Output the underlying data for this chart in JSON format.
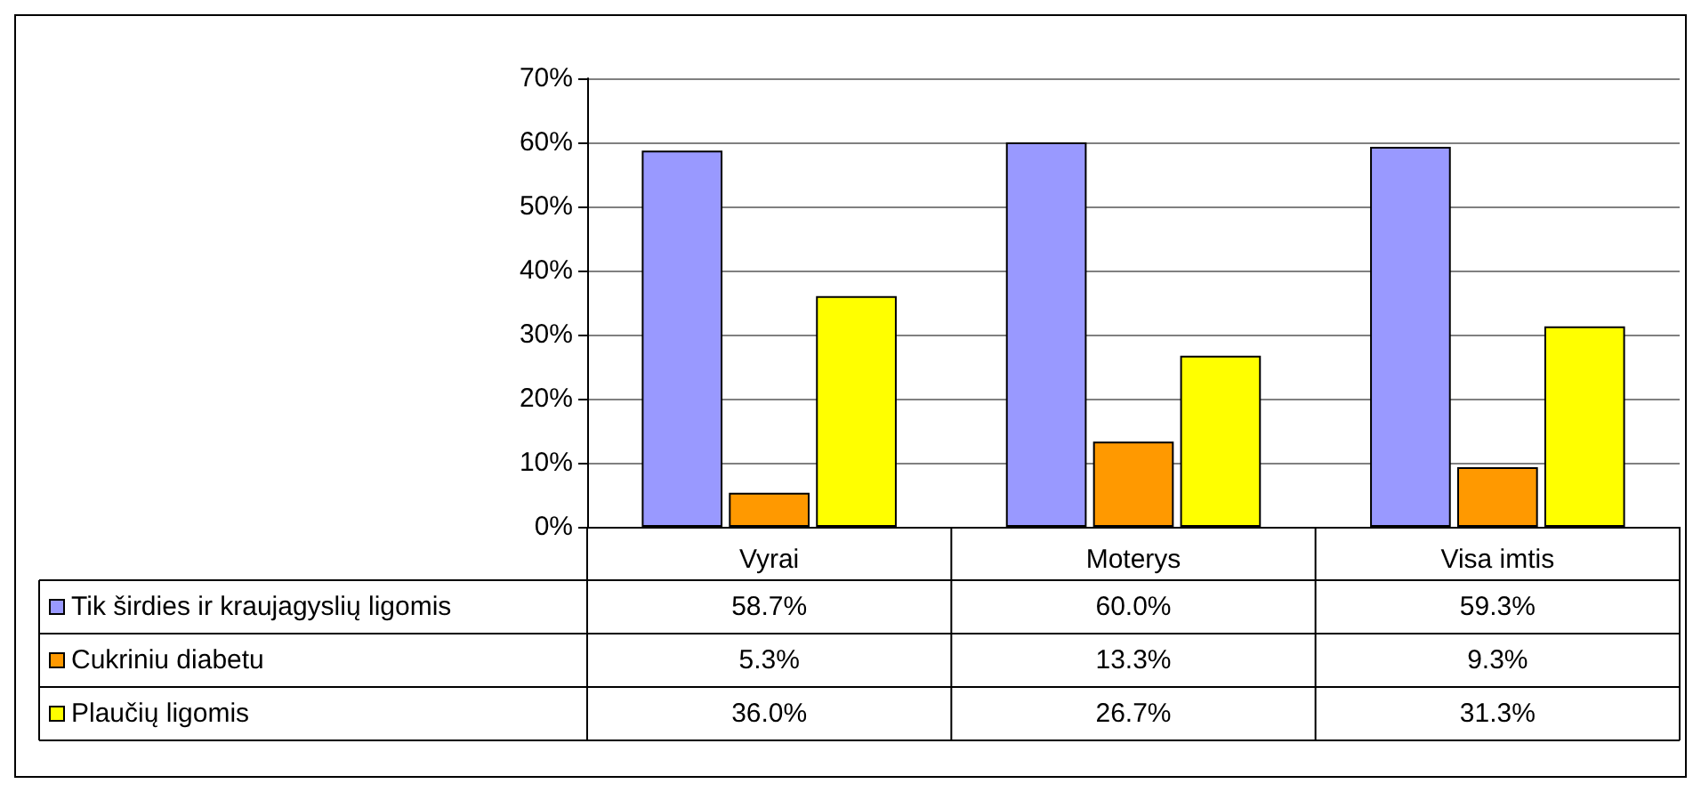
{
  "chart_data": {
    "type": "bar",
    "categories": [
      "Vyrai",
      "Moterys",
      "Visa imtis"
    ],
    "series": [
      {
        "name": "Tik širdies ir kraujagyslių ligomis",
        "color": "#9999ff",
        "values": [
          58.7,
          60.0,
          59.3
        ],
        "value_labels": [
          "58.7%",
          "60.0%",
          "59.3%"
        ]
      },
      {
        "name": "Cukriniu diabetu",
        "color": "#ff9900",
        "values": [
          5.3,
          13.3,
          9.3
        ],
        "value_labels": [
          "5.3%",
          "13.3%",
          "9.3%"
        ]
      },
      {
        "name": "Plaučių ligomis",
        "color": "#ffff00",
        "values": [
          36.0,
          26.7,
          31.3
        ],
        "value_labels": [
          "36.0%",
          "26.7%",
          "31.3%"
        ]
      }
    ],
    "ylim": [
      0,
      70
    ],
    "yticks": [
      {
        "value": 0,
        "label": "0%"
      },
      {
        "value": 10,
        "label": "10%"
      },
      {
        "value": 20,
        "label": "20%"
      },
      {
        "value": 30,
        "label": "30%"
      },
      {
        "value": 40,
        "label": "40%"
      },
      {
        "value": 50,
        "label": "50%"
      },
      {
        "value": 60,
        "label": "60%"
      },
      {
        "value": 70,
        "label": "70%"
      }
    ],
    "grid": "y",
    "legend": "bottom left"
  }
}
